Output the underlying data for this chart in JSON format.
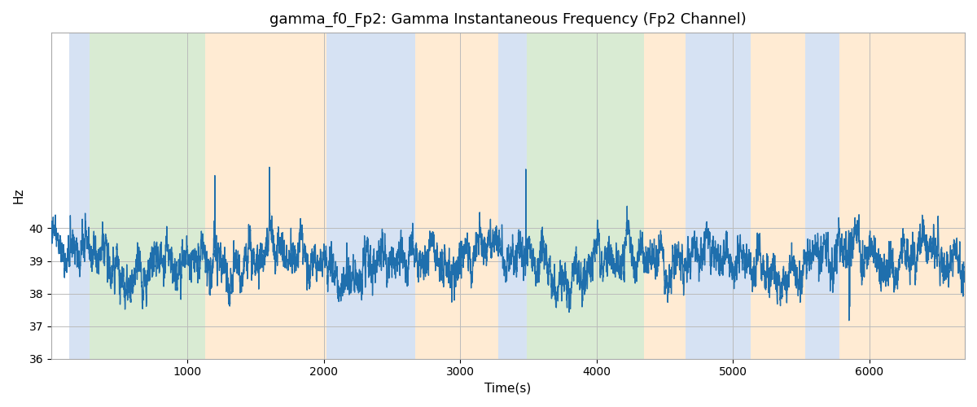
{
  "title": "gamma_f0_Fp2: Gamma Instantaneous Frequency (Fp2 Channel)",
  "xlabel": "Time(s)",
  "ylabel": "Hz",
  "xlim": [
    0,
    6700
  ],
  "ylim": [
    36,
    46
  ],
  "yticks": [
    36,
    37,
    38,
    39,
    40
  ],
  "xticks": [
    1000,
    2000,
    3000,
    4000,
    5000,
    6000
  ],
  "line_color": "#1f6fad",
  "line_width": 1.0,
  "bg_color": "#ffffff",
  "grid_color": "#bbbbbb",
  "bands": [
    {
      "xmin": 130,
      "xmax": 280,
      "color": "#aec6e8",
      "alpha": 0.5
    },
    {
      "xmin": 280,
      "xmax": 1130,
      "color": "#b5d9a8",
      "alpha": 0.5
    },
    {
      "xmin": 1130,
      "xmax": 2020,
      "color": "#ffd9a8",
      "alpha": 0.5
    },
    {
      "xmin": 2020,
      "xmax": 2670,
      "color": "#aec6e8",
      "alpha": 0.5
    },
    {
      "xmin": 2670,
      "xmax": 3280,
      "color": "#ffd9a8",
      "alpha": 0.5
    },
    {
      "xmin": 3280,
      "xmax": 3490,
      "color": "#aec6e8",
      "alpha": 0.5
    },
    {
      "xmin": 3490,
      "xmax": 3780,
      "color": "#b5d9a8",
      "alpha": 0.5
    },
    {
      "xmin": 3780,
      "xmax": 4350,
      "color": "#b5d9a8",
      "alpha": 0.5
    },
    {
      "xmin": 4350,
      "xmax": 4650,
      "color": "#ffd9a8",
      "alpha": 0.5
    },
    {
      "xmin": 4650,
      "xmax": 5130,
      "color": "#aec6e8",
      "alpha": 0.5
    },
    {
      "xmin": 5130,
      "xmax": 5530,
      "color": "#ffd9a8",
      "alpha": 0.5
    },
    {
      "xmin": 5530,
      "xmax": 5780,
      "color": "#aec6e8",
      "alpha": 0.5
    },
    {
      "xmin": 5780,
      "xmax": 6700,
      "color": "#ffd9a8",
      "alpha": 0.5
    }
  ],
  "seed": 42,
  "signal_mean": 39.0
}
